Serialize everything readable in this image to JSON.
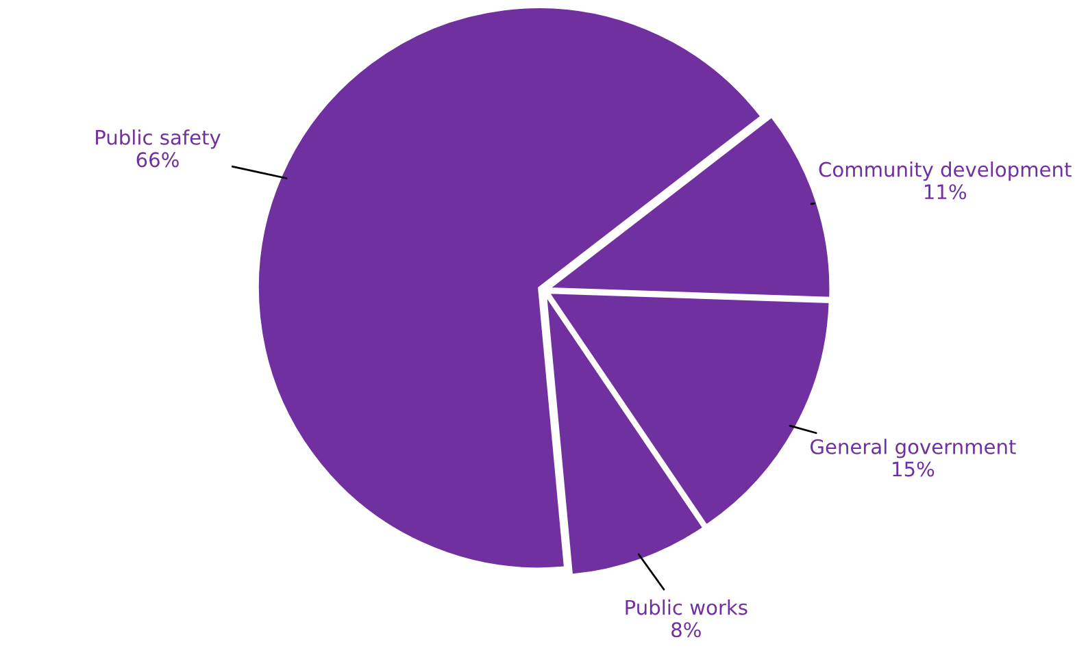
{
  "chart_data": {
    "type": "pie",
    "categories": [
      "Community development",
      "General government",
      "Public works",
      "Public safety"
    ],
    "values": [
      11,
      15,
      8,
      66
    ],
    "colors": [
      "#7030a0",
      "#7030a0",
      "#7030a0",
      "#7030a0"
    ],
    "value_labels": [
      "11%",
      "15%",
      "8%",
      "66%"
    ],
    "legend": false
  }
}
